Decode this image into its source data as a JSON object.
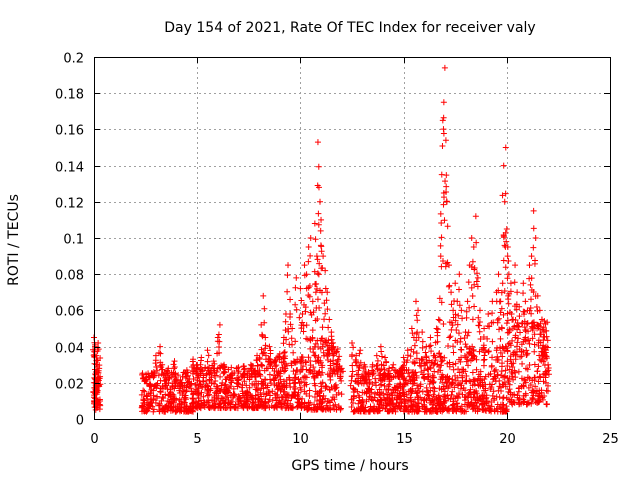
{
  "chart_data": {
    "type": "scatter",
    "title": "Day 154 of 2021, Rate Of TEC Index for receiver valy",
    "xlabel": "GPS time / hours",
    "ylabel": "ROTI / TECUs",
    "xlim": [
      0,
      25
    ],
    "ylim": [
      0,
      0.2
    ],
    "xticks": [
      0,
      5,
      10,
      15,
      20,
      25
    ],
    "xtick_labels": [
      "0",
      "5",
      "10",
      "15",
      "20",
      "25"
    ],
    "yticks": [
      0,
      0.02,
      0.04,
      0.06,
      0.08,
      0.1,
      0.12,
      0.14,
      0.16,
      0.18,
      0.2
    ],
    "ytick_labels": [
      "0",
      "0.02",
      "0.04",
      "0.06",
      "0.08",
      "0.1",
      "0.12",
      "0.14",
      "0.16",
      "0.18",
      "0.2"
    ],
    "grid": true,
    "marker": "+",
    "series": [
      {
        "name": "ROTI",
        "color": "#ff0000",
        "points": [
          [
            0.0,
            0.045
          ],
          [
            0.05,
            0.04
          ],
          [
            0.1,
            0.035
          ],
          [
            0.15,
            0.03
          ],
          [
            0.2,
            0.042
          ],
          [
            0.25,
            0.028
          ],
          [
            0.05,
            0.02
          ],
          [
            0.1,
            0.015
          ],
          [
            0.15,
            0.01
          ],
          [
            0.2,
            0.022
          ],
          [
            0.0,
            0.012
          ],
          [
            0.25,
            0.018
          ],
          [
            2.5,
            0.022
          ],
          [
            2.7,
            0.018
          ],
          [
            2.9,
            0.026
          ],
          [
            3.0,
            0.035
          ],
          [
            3.2,
            0.04
          ],
          [
            3.3,
            0.03
          ],
          [
            3.6,
            0.028
          ],
          [
            3.9,
            0.032
          ],
          [
            4.2,
            0.02
          ],
          [
            4.5,
            0.027
          ],
          [
            4.8,
            0.033
          ],
          [
            5.0,
            0.03
          ],
          [
            5.2,
            0.034
          ],
          [
            5.5,
            0.038
          ],
          [
            5.8,
            0.032
          ],
          [
            6.0,
            0.045
          ],
          [
            6.1,
            0.052
          ],
          [
            6.3,
            0.03
          ],
          [
            6.6,
            0.024
          ],
          [
            7.0,
            0.022
          ],
          [
            7.3,
            0.028
          ],
          [
            7.6,
            0.03
          ],
          [
            7.9,
            0.035
          ],
          [
            8.1,
            0.052
          ],
          [
            8.2,
            0.068
          ],
          [
            8.3,
            0.045
          ],
          [
            8.5,
            0.04
          ],
          [
            8.8,
            0.032
          ],
          [
            9.0,
            0.036
          ],
          [
            9.2,
            0.045
          ],
          [
            9.3,
            0.058
          ],
          [
            9.4,
            0.085
          ],
          [
            9.5,
            0.066
          ],
          [
            9.6,
            0.05
          ],
          [
            9.8,
            0.078
          ],
          [
            10.0,
            0.072
          ],
          [
            10.1,
            0.058
          ],
          [
            10.2,
            0.085
          ],
          [
            10.3,
            0.08
          ],
          [
            10.4,
            0.095
          ],
          [
            10.5,
            0.1
          ],
          [
            10.6,
            0.065
          ],
          [
            10.7,
            0.108
          ],
          [
            10.75,
            0.07
          ],
          [
            10.8,
            0.09
          ],
          [
            10.85,
            0.153
          ],
          [
            10.9,
            0.128
          ],
          [
            10.95,
            0.12
          ],
          [
            11.0,
            0.11
          ],
          [
            11.1,
            0.09
          ],
          [
            11.2,
            0.082
          ],
          [
            11.3,
            0.07
          ],
          [
            11.4,
            0.055
          ],
          [
            11.5,
            0.048
          ],
          [
            11.6,
            0.04
          ],
          [
            11.8,
            0.032
          ],
          [
            12.0,
            0.028
          ],
          [
            12.5,
            0.042
          ],
          [
            12.7,
            0.035
          ],
          [
            12.9,
            0.038
          ],
          [
            13.1,
            0.03
          ],
          [
            13.3,
            0.026
          ],
          [
            13.5,
            0.03
          ],
          [
            13.7,
            0.035
          ],
          [
            13.9,
            0.04
          ],
          [
            14.1,
            0.034
          ],
          [
            14.3,
            0.028
          ],
          [
            14.5,
            0.03
          ],
          [
            14.7,
            0.026
          ],
          [
            14.9,
            0.028
          ],
          [
            15.0,
            0.034
          ],
          [
            15.2,
            0.038
          ],
          [
            15.4,
            0.05
          ],
          [
            15.5,
            0.045
          ],
          [
            15.6,
            0.065
          ],
          [
            15.7,
            0.06
          ],
          [
            15.9,
            0.048
          ],
          [
            16.1,
            0.04
          ],
          [
            16.3,
            0.045
          ],
          [
            16.5,
            0.035
          ],
          [
            16.6,
            0.05
          ],
          [
            16.7,
            0.055
          ],
          [
            16.8,
            0.09
          ],
          [
            16.85,
            0.135
          ],
          [
            16.9,
            0.165
          ],
          [
            16.95,
            0.175
          ],
          [
            17.0,
            0.194
          ],
          [
            17.05,
            0.154
          ],
          [
            17.1,
            0.12
          ],
          [
            17.2,
            0.085
          ],
          [
            17.3,
            0.07
          ],
          [
            17.4,
            0.06
          ],
          [
            17.5,
            0.075
          ],
          [
            17.6,
            0.065
          ],
          [
            17.7,
            0.08
          ],
          [
            17.8,
            0.06
          ],
          [
            18.0,
            0.048
          ],
          [
            18.1,
            0.065
          ],
          [
            18.2,
            0.085
          ],
          [
            18.3,
            0.1
          ],
          [
            18.4,
            0.095
          ],
          [
            18.5,
            0.112
          ],
          [
            18.6,
            0.078
          ],
          [
            18.7,
            0.06
          ],
          [
            18.9,
            0.05
          ],
          [
            19.1,
            0.058
          ],
          [
            19.3,
            0.065
          ],
          [
            19.5,
            0.07
          ],
          [
            19.6,
            0.08
          ],
          [
            19.7,
            0.065
          ],
          [
            19.8,
            0.075
          ],
          [
            19.85,
            0.14
          ],
          [
            19.9,
            0.12
          ],
          [
            19.95,
            0.15
          ],
          [
            20.0,
            0.105
          ],
          [
            20.05,
            0.095
          ],
          [
            20.1,
            0.08
          ],
          [
            20.2,
            0.075
          ],
          [
            20.4,
            0.085
          ],
          [
            20.5,
            0.07
          ],
          [
            20.6,
            0.062
          ],
          [
            20.8,
            0.075
          ],
          [
            20.9,
            0.065
          ],
          [
            21.0,
            0.06
          ],
          [
            21.1,
            0.085
          ],
          [
            21.2,
            0.09
          ],
          [
            21.3,
            0.115
          ],
          [
            21.4,
            0.1
          ],
          [
            21.5,
            0.068
          ],
          [
            21.6,
            0.06
          ],
          [
            21.7,
            0.055
          ],
          [
            21.8,
            0.048
          ],
          [
            21.9,
            0.04
          ],
          [
            22.0,
            0.03
          ]
        ],
        "bands": [
          {
            "x": [
              0.0,
              0.3
            ],
            "y": [
              0.005,
              0.035
            ]
          },
          {
            "x": [
              2.3,
              4.8
            ],
            "y": [
              0.004,
              0.026
            ]
          },
          {
            "x": [
              4.8,
              8.0
            ],
            "y": [
              0.006,
              0.03
            ]
          },
          {
            "x": [
              8.0,
              10.2
            ],
            "y": [
              0.006,
              0.035
            ]
          },
          {
            "x": [
              10.2,
              12.0
            ],
            "y": [
              0.005,
              0.045
            ]
          },
          {
            "x": [
              12.4,
              15.5
            ],
            "y": [
              0.004,
              0.028
            ]
          },
          {
            "x": [
              15.5,
              18.0
            ],
            "y": [
              0.004,
              0.035
            ]
          },
          {
            "x": [
              18.0,
              20.0
            ],
            "y": [
              0.004,
              0.04
            ]
          },
          {
            "x": [
              20.0,
              22.0
            ],
            "y": [
              0.008,
              0.055
            ]
          }
        ]
      }
    ]
  }
}
